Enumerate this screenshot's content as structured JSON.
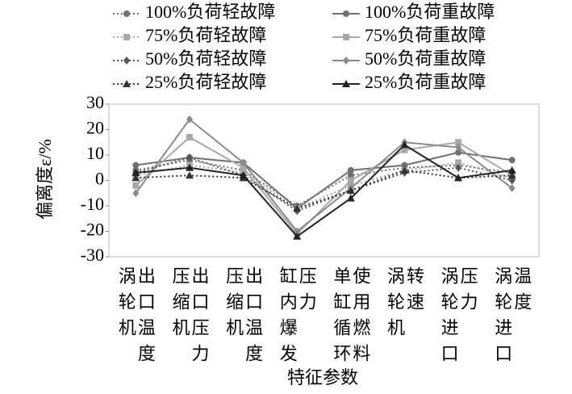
{
  "chart_data": {
    "type": "line",
    "xlabel": "特征参数",
    "ylabel": "偏离度ε/%",
    "categories": [
      [
        "涡轮机",
        "出口温度"
      ],
      [
        "压缩机",
        "出口压力"
      ],
      [
        "压缩机",
        "出口温度"
      ],
      [
        "缸内爆发",
        "压力"
      ],
      [
        "单缸循环",
        "使用燃料"
      ],
      [
        "涡轮机",
        "转速"
      ],
      [
        "涡轮进口",
        "压力"
      ],
      [
        "涡轮进口",
        "温度"
      ]
    ],
    "ylim": [
      -30,
      30
    ],
    "yticks": [
      -30,
      -20,
      -10,
      0,
      10,
      20,
      30
    ],
    "grid": false,
    "series": [
      {
        "name": "100%负荷轻故障",
        "color": "#707070",
        "style": "dotted",
        "marker": "circle",
        "values": [
          4,
          8,
          4,
          -10,
          2,
          5,
          6,
          3
        ]
      },
      {
        "name": "100%负荷重故障",
        "color": "#707070",
        "style": "solid",
        "marker": "circle",
        "values": [
          6,
          9,
          7,
          -11,
          4,
          6,
          11,
          8
        ]
      },
      {
        "name": "75%负荷轻故障",
        "color": "#a8a8a8",
        "style": "dotted",
        "marker": "square",
        "values": [
          2,
          6,
          3,
          -11,
          -2,
          4,
          7,
          1
        ]
      },
      {
        "name": "75%负荷重故障",
        "color": "#a8a8a8",
        "style": "solid",
        "marker": "square",
        "values": [
          -2,
          17,
          5,
          -21,
          0,
          12,
          15,
          2
        ]
      },
      {
        "name": "50%负荷轻故障",
        "color": "#555555",
        "style": "dotted",
        "marker": "diamond",
        "values": [
          3,
          9,
          2,
          -12,
          -4,
          3,
          5,
          0
        ]
      },
      {
        "name": "50%负荷重故障",
        "color": "#8a8a8a",
        "style": "solid",
        "marker": "diamond",
        "values": [
          -5,
          24,
          7,
          -20,
          -3,
          15,
          13,
          -3
        ]
      },
      {
        "name": "25%负荷轻故障",
        "color": "#333333",
        "style": "dotted",
        "marker": "triangle",
        "values": [
          1,
          2,
          1,
          -11,
          -4,
          4,
          1,
          2
        ]
      },
      {
        "name": "25%负荷重故障",
        "color": "#222222",
        "style": "solid",
        "marker": "triangle",
        "values": [
          3,
          5,
          2,
          -22,
          -7,
          14,
          1,
          4
        ]
      }
    ]
  }
}
